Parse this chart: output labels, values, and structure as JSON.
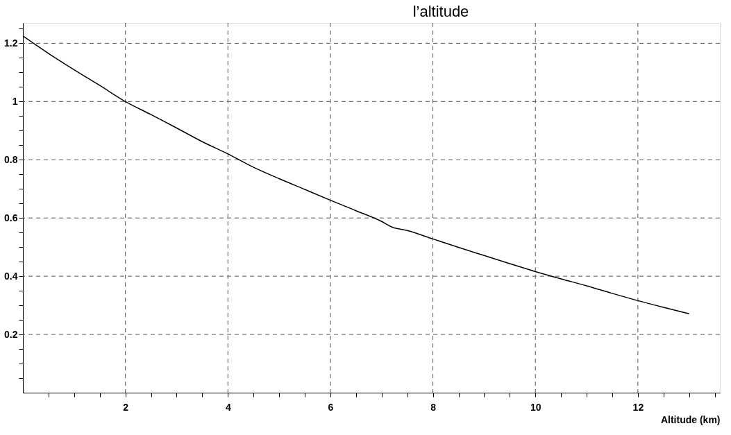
{
  "chart_data": {
    "type": "line",
    "title": "l’altitude",
    "xlabel": "Altitude (km)",
    "x": [
      0,
      0.5,
      1,
      1.5,
      2,
      2.5,
      3,
      3.5,
      4,
      4.5,
      5,
      5.5,
      6,
      6.5,
      7,
      7.2,
      7.5,
      8,
      8.5,
      9,
      9.5,
      10,
      10.5,
      11,
      11.5,
      12,
      12.5,
      13
    ],
    "series": [
      {
        "color": "#000000",
        "values": [
          1.225,
          1.165,
          1.109,
          1.055,
          1.0,
          0.955,
          0.909,
          0.862,
          0.82,
          0.774,
          0.735,
          0.698,
          0.661,
          0.625,
          0.588,
          0.569,
          0.557,
          0.528,
          0.499,
          0.471,
          0.443,
          0.416,
          0.391,
          0.367,
          0.341,
          0.316,
          0.293,
          0.271
        ]
      }
    ],
    "xlim": [
      0,
      13.6
    ],
    "ylim": [
      0,
      1.27
    ],
    "xticks": [
      {
        "value": 0.5,
        "label": null
      },
      {
        "value": 1,
        "label": null
      },
      {
        "value": 1.5,
        "label": null
      },
      2,
      {
        "value": 2.5,
        "label": null
      },
      {
        "value": 3,
        "label": null
      },
      {
        "value": 3.5,
        "label": null
      },
      4,
      {
        "value": 4.5,
        "label": null
      },
      {
        "value": 5,
        "label": null
      },
      {
        "value": 5.5,
        "label": null
      },
      6,
      {
        "value": 6.5,
        "label": null
      },
      {
        "value": 7,
        "label": null
      },
      {
        "value": 7.5,
        "label": null
      },
      8,
      {
        "value": 8.5,
        "label": null
      },
      {
        "value": 9,
        "label": null
      },
      {
        "value": 9.5,
        "label": null
      },
      10,
      {
        "value": 10.5,
        "label": null
      },
      {
        "value": 11,
        "label": null
      },
      {
        "value": 11.5,
        "label": null
      },
      12,
      {
        "value": 12.5,
        "label": null
      },
      {
        "value": 13,
        "label": null
      },
      {
        "value": 13.5,
        "label": null
      }
    ],
    "yticks": [
      {
        "value": 0.05,
        "label": null
      },
      {
        "value": 0.1,
        "label": null
      },
      {
        "value": 0.15,
        "label": null
      },
      0.2,
      {
        "value": 0.25,
        "label": null
      },
      {
        "value": 0.3,
        "label": null
      },
      {
        "value": 0.35,
        "label": null
      },
      0.4,
      {
        "value": 0.45,
        "label": null
      },
      {
        "value": 0.5,
        "label": null
      },
      {
        "value": 0.55,
        "label": null
      },
      0.6,
      {
        "value": 0.65,
        "label": null
      },
      {
        "value": 0.7,
        "label": null
      },
      {
        "value": 0.75,
        "label": null
      },
      0.8,
      {
        "value": 0.85,
        "label": null
      },
      {
        "value": 0.9,
        "label": null
      },
      {
        "value": 0.95,
        "label": null
      },
      1,
      {
        "value": 1.05,
        "label": null
      },
      {
        "value": 1.1,
        "label": null
      },
      {
        "value": 1.15,
        "label": null
      },
      1.2,
      {
        "value": 1.25,
        "label": null
      }
    ],
    "grid": true,
    "marker": "none",
    "line_style": "solid"
  }
}
